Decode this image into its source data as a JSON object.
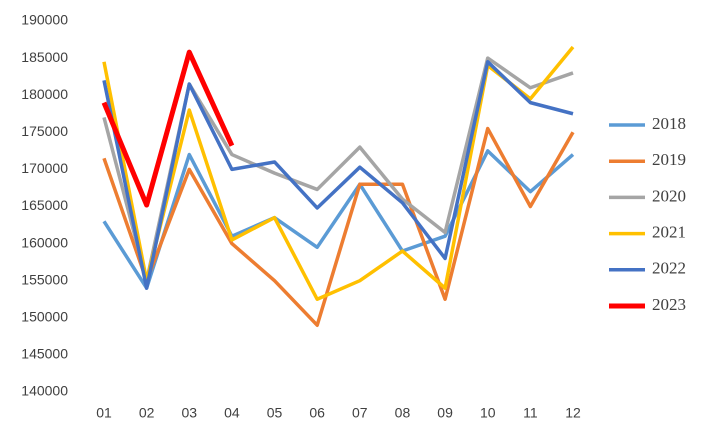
{
  "chart_data": {
    "type": "line",
    "categories": [
      "01",
      "02",
      "03",
      "04",
      "05",
      "06",
      "07",
      "08",
      "09",
      "10",
      "11",
      "12"
    ],
    "ylim": [
      140000,
      190000
    ],
    "yticks": [
      140000,
      145000,
      150000,
      155000,
      160000,
      165000,
      170000,
      175000,
      180000,
      185000,
      190000
    ],
    "grid": false,
    "legend": "right",
    "series": [
      {
        "name": "2018",
        "color": "#5b9bd5",
        "values": [
          163000,
          154000,
          172000,
          161000,
          163500,
          159500,
          168000,
          159000,
          161000,
          172500,
          167000,
          172000
        ]
      },
      {
        "name": "2019",
        "color": "#ed7d31",
        "values": [
          171500,
          155000,
          170000,
          160000,
          155000,
          149000,
          168000,
          168000,
          152500,
          175500,
          165000,
          175000
        ]
      },
      {
        "name": "2020",
        "color": "#a5a5a5",
        "values": [
          177000,
          155000,
          181500,
          172000,
          169500,
          167300,
          173000,
          166000,
          161500,
          185000,
          181000,
          183000
        ]
      },
      {
        "name": "2021",
        "color": "#ffc000",
        "values": [
          184500,
          155000,
          178000,
          160500,
          163500,
          152500,
          155000,
          159000,
          154000,
          184000,
          179500,
          186500
        ]
      },
      {
        "name": "2022",
        "color": "#4472c4",
        "values": [
          182000,
          154000,
          181500,
          170000,
          171000,
          164800,
          170300,
          165500,
          158000,
          184500,
          179000,
          177500
        ]
      },
      {
        "name": "2023",
        "color": "#ff0000",
        "values": [
          179000,
          165200,
          185800,
          173200,
          null,
          null,
          null,
          null,
          null,
          null,
          null,
          null
        ]
      }
    ]
  }
}
